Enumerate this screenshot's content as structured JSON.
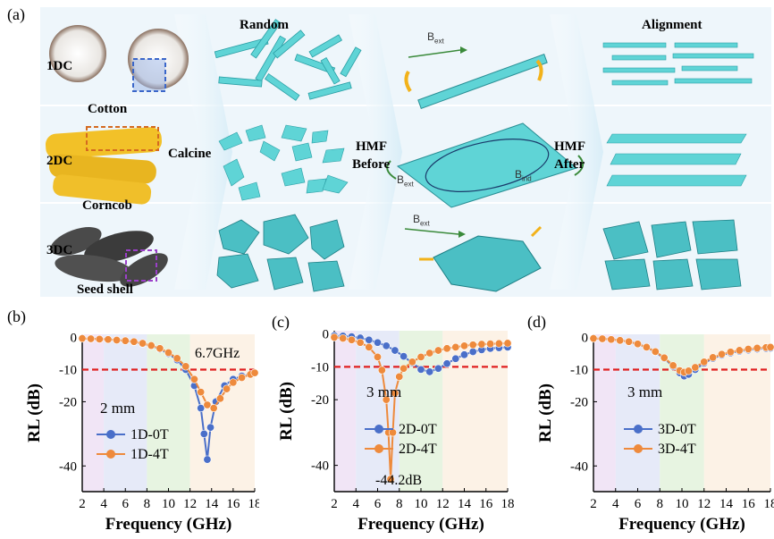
{
  "panel_a": {
    "label": "(a)",
    "col_random": "Random",
    "col_alignment": "Alignment",
    "rows": [
      {
        "tag": "1DC",
        "source": "Cotton"
      },
      {
        "tag": "2DC",
        "source": "Corncob"
      },
      {
        "tag": "3DC",
        "source": "Seed shell"
      }
    ],
    "calcine": "Calcine",
    "hmf_before_1": "HMF",
    "hmf_before_2": "Before",
    "hmf_after_1": "HMF",
    "hmf_after_2": "After",
    "bext": "B",
    "bext_sub": "ext",
    "bind_sub": "ind"
  },
  "colors": {
    "cyan": "#5fd4d6",
    "blue_series": "#4a6fc9",
    "orange_series": "#ee8a3c",
    "dashed": "#e02020"
  },
  "chart_data": [
    {
      "label": "(b)",
      "type": "line",
      "xlabel": "Frequency (GHz)",
      "ylabel": "RL (dB)",
      "xlim": [
        2,
        18
      ],
      "ylim": [
        -48,
        1
      ],
      "xticks": [
        2,
        4,
        6,
        8,
        10,
        12,
        14,
        16,
        18
      ],
      "yticks": [
        0,
        -10,
        -20,
        -40
      ],
      "threshold": -10,
      "thickness": "2 mm",
      "annotation": "6.7GHz",
      "bands": [
        [
          2,
          4,
          "#efe0f5"
        ],
        [
          4,
          8,
          "#e2e6f7"
        ],
        [
          8,
          12,
          "#e3f2dc"
        ],
        [
          12,
          18,
          "#fbf0e2"
        ]
      ],
      "series": [
        {
          "name": "1D-0T",
          "color": "#4a6fc9",
          "x": [
            2,
            2.8,
            3.6,
            4.4,
            5.2,
            6,
            6.8,
            7.6,
            8.4,
            9.2,
            10,
            10.8,
            11.6,
            12.4,
            13,
            13.3,
            13.6,
            13.9,
            14.4,
            15.2,
            16,
            16.8,
            17.6,
            18
          ],
          "y": [
            -0.3,
            -0.4,
            -0.5,
            -0.6,
            -0.8,
            -1,
            -1.4,
            -1.9,
            -2.6,
            -3.6,
            -5,
            -7,
            -10,
            -15,
            -22,
            -30,
            -38,
            -28,
            -20,
            -15,
            -13,
            -12,
            -11.5,
            -11
          ]
        },
        {
          "name": "1D-4T",
          "color": "#ee8a3c",
          "x": [
            2,
            2.8,
            3.6,
            4.4,
            5.2,
            6,
            6.8,
            7.6,
            8.4,
            9.2,
            10,
            10.8,
            11.6,
            12.4,
            13,
            13.6,
            14.2,
            14.8,
            15.4,
            16,
            16.8,
            17.6,
            18
          ],
          "y": [
            -0.3,
            -0.4,
            -0.5,
            -0.6,
            -0.8,
            -1,
            -1.3,
            -1.8,
            -2.5,
            -3.4,
            -4.7,
            -6.5,
            -9,
            -13,
            -17,
            -21,
            -22,
            -19,
            -16,
            -14,
            -12.5,
            -11.5,
            -11
          ]
        }
      ]
    },
    {
      "label": "(c)",
      "type": "line",
      "xlabel": "Frequency (GHz)",
      "ylabel": "RL (dB)",
      "xlim": [
        2,
        18
      ],
      "ylim": [
        -48,
        1
      ],
      "xticks": [
        2,
        4,
        6,
        8,
        10,
        12,
        14,
        16,
        18
      ],
      "yticks": [
        0,
        -10,
        -20,
        -40
      ],
      "threshold": -10,
      "thickness": "3 mm",
      "annotation": "-44.2dB",
      "bands": [
        [
          2,
          4,
          "#efe0f5"
        ],
        [
          4,
          8,
          "#e2e6f7"
        ],
        [
          8,
          12,
          "#e3f2dc"
        ],
        [
          12,
          18,
          "#fbf0e2"
        ]
      ],
      "series": [
        {
          "name": "2D-0T",
          "color": "#4a6fc9",
          "x": [
            2,
            2.8,
            3.6,
            4.4,
            5.2,
            6,
            6.8,
            7.6,
            8.4,
            9.2,
            10,
            10.8,
            11.6,
            12.4,
            13.2,
            14,
            14.8,
            15.6,
            16.4,
            17.2,
            18
          ],
          "y": [
            -0.5,
            -0.6,
            -0.8,
            -1.2,
            -1.8,
            -2.6,
            -3.6,
            -5,
            -6.8,
            -8.8,
            -10.8,
            -11.5,
            -10.5,
            -9,
            -7.5,
            -6.3,
            -5.4,
            -4.8,
            -4.4,
            -4.2,
            -4
          ]
        },
        {
          "name": "2D-4T",
          "color": "#ee8a3c",
          "x": [
            2,
            2.8,
            3.6,
            4.4,
            5.2,
            6,
            6.4,
            6.8,
            7,
            7.2,
            7.4,
            7.6,
            8,
            8.4,
            9.2,
            10,
            10.8,
            11.6,
            12.4,
            13.2,
            14,
            14.8,
            15.6,
            16.4,
            17.2,
            18
          ],
          "y": [
            -1,
            -1.3,
            -1.8,
            -2.6,
            -4,
            -7,
            -11,
            -20,
            -30,
            -44.2,
            -30,
            -18,
            -13,
            -10.5,
            -8.5,
            -7,
            -5.8,
            -5,
            -4.4,
            -4,
            -3.6,
            -3.3,
            -3.1,
            -3,
            -2.9,
            -2.8
          ]
        }
      ]
    },
    {
      "label": "(d)",
      "type": "line",
      "xlabel": "Frequency (GHz)",
      "ylabel": "RL (dB)",
      "xlim": [
        2,
        18
      ],
      "ylim": [
        -48,
        1
      ],
      "xticks": [
        2,
        4,
        6,
        8,
        10,
        12,
        14,
        16,
        18
      ],
      "yticks": [
        0,
        -10,
        -20,
        -40
      ],
      "threshold": -10,
      "thickness": "3 mm",
      "annotation": "",
      "bands": [
        [
          2,
          4,
          "#efe0f5"
        ],
        [
          4,
          8,
          "#e2e6f7"
        ],
        [
          8,
          12,
          "#e3f2dc"
        ],
        [
          12,
          18,
          "#fbf0e2"
        ]
      ],
      "series": [
        {
          "name": "3D-0T",
          "color": "#4a6fc9",
          "x": [
            2,
            2.8,
            3.6,
            4.4,
            5.2,
            6,
            6.8,
            7.6,
            8.4,
            9.2,
            9.8,
            10.2,
            10.6,
            11.2,
            12,
            12.8,
            13.6,
            14.4,
            15.2,
            16,
            16.8,
            17.6,
            18
          ],
          "y": [
            -0.3,
            -0.4,
            -0.6,
            -0.9,
            -1.3,
            -2,
            -3,
            -4.5,
            -6.5,
            -9,
            -11,
            -12,
            -11.5,
            -10,
            -8,
            -6.5,
            -5.5,
            -4.8,
            -4.3,
            -3.9,
            -3.6,
            -3.4,
            -3.3
          ]
        },
        {
          "name": "3D-4T",
          "color": "#ee8a3c",
          "x": [
            2,
            2.8,
            3.6,
            4.4,
            5.2,
            6,
            6.8,
            7.6,
            8.4,
            9.2,
            9.8,
            10.2,
            10.6,
            11.2,
            12,
            12.8,
            13.6,
            14.4,
            15.2,
            16,
            16.8,
            17.6,
            18
          ],
          "y": [
            -0.3,
            -0.4,
            -0.6,
            -0.9,
            -1.3,
            -2,
            -3,
            -4.4,
            -6.3,
            -8.7,
            -10.3,
            -10.8,
            -10.4,
            -9.3,
            -7.6,
            -6.2,
            -5.2,
            -4.5,
            -4,
            -3.6,
            -3.3,
            -3.1,
            -3
          ]
        }
      ]
    }
  ]
}
